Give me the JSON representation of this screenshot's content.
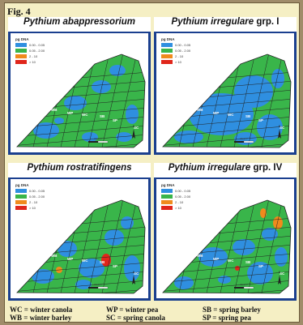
{
  "figure_label": "Fig. 4",
  "panels": [
    {
      "name": "Pythium abappressorium",
      "title_italic": "Pythium abappressorium",
      "title_plain": ""
    },
    {
      "name": "Pythium irregulare grp. I",
      "title_italic": "Pythium irregulare",
      "title_plain": " grp. I"
    },
    {
      "name": "Pythium rostratifingens",
      "title_italic": "Pythium rostratifingens",
      "title_plain": ""
    },
    {
      "name": "Pythium irregulare grp. IV",
      "title_italic": "Pythium irregulare",
      "title_plain": " grp. IV"
    }
  ],
  "legend": {
    "title": "pg DNA",
    "classes": [
      {
        "label": "0.00 - 0.05",
        "color": "#2f8fe0"
      },
      {
        "label": "0.05 - 2.00",
        "color": "#39b54a"
      },
      {
        "label": "2 - 10",
        "color": "#f08a1c"
      },
      {
        "label": "> 10",
        "color": "#e0261b"
      }
    ]
  },
  "field_labels": [
    "WB",
    "WP",
    "WC",
    "SB",
    "SP",
    "SC"
  ],
  "scale_label": "Meters",
  "north_label": "N",
  "crop_codes": {
    "wc": "WC = winter canola",
    "wb": "WB = winter barley",
    "wp": "WP = winter pea",
    "sc": "SC = spring canola",
    "sb": "SB = spring barley",
    "sp": "SP = spring pea"
  },
  "colors": {
    "frame": "#1a3f8f",
    "background": "#f5efc4",
    "map_green": "#39b54a",
    "map_blue": "#2f8fe0"
  }
}
